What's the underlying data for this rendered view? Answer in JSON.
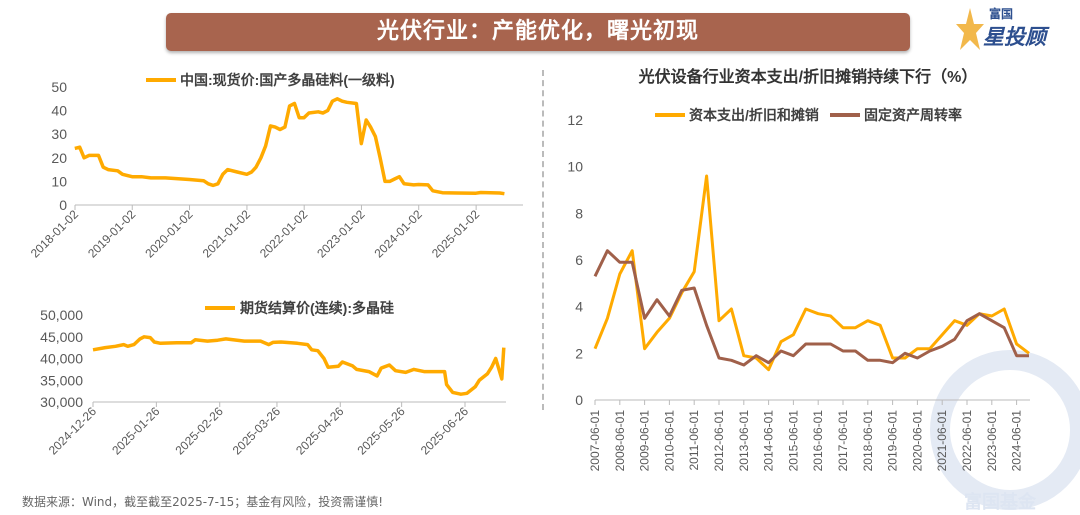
{
  "banner": {
    "title": "光伏行业：产能优化，曙光初现"
  },
  "logo": {
    "line1": "富国",
    "line2": "星投顾"
  },
  "footer": "数据来源：Wind，截至截至2025-7-15；基金有风险，投资需谨慎!",
  "watermark": "富国基金",
  "colors": {
    "orange": "#ffaa00",
    "brown": "#a0604a",
    "banner": "#a8644e"
  },
  "chart_data": [
    {
      "type": "line",
      "title": "",
      "legend": [
        "中国:现货价:国产多晶硅料(一级料)"
      ],
      "ylim": [
        0,
        50
      ],
      "yticks": [
        "0",
        "10",
        "20",
        "30",
        "40",
        "50"
      ],
      "xticks": [
        "2018-01-02",
        "2019-01-02",
        "2020-01-02",
        "2021-01-02",
        "2022-01-02",
        "2023-01-02",
        "2024-01-02",
        "2025-01-02"
      ],
      "series": [
        {
          "name": "中国:现货价:国产多晶硅料(一级料)",
          "points": [
            [
              "2018-01",
              24
            ],
            [
              "2018-02",
              24.5
            ],
            [
              "2018-03",
              20
            ],
            [
              "2018-04",
              21
            ],
            [
              "2018-06",
              21
            ],
            [
              "2018-07",
              16
            ],
            [
              "2018-08",
              15
            ],
            [
              "2018-10",
              14.5
            ],
            [
              "2018-11",
              13
            ],
            [
              "2019-01",
              12
            ],
            [
              "2019-03",
              12
            ],
            [
              "2019-05",
              11.5
            ],
            [
              "2019-08",
              11.5
            ],
            [
              "2020-01",
              10.8
            ],
            [
              "2020-04",
              10.3
            ],
            [
              "2020-05",
              9
            ],
            [
              "2020-06",
              8.3
            ],
            [
              "2020-07",
              9
            ],
            [
              "2020-08",
              13
            ],
            [
              "2020-09",
              15
            ],
            [
              "2020-11",
              14
            ],
            [
              "2021-01",
              13
            ],
            [
              "2021-02",
              14
            ],
            [
              "2021-03",
              16
            ],
            [
              "2021-04",
              20
            ],
            [
              "2021-05",
              25
            ],
            [
              "2021-06",
              33.5
            ],
            [
              "2021-07",
              33
            ],
            [
              "2021-08",
              32
            ],
            [
              "2021-09",
              33
            ],
            [
              "2021-10",
              42
            ],
            [
              "2021-11",
              43
            ],
            [
              "2021-12",
              37
            ],
            [
              "2022-01",
              37
            ],
            [
              "2022-02",
              39
            ],
            [
              "2022-04",
              39.5
            ],
            [
              "2022-05",
              39
            ],
            [
              "2022-06",
              40
            ],
            [
              "2022-07",
              44
            ],
            [
              "2022-08",
              45
            ],
            [
              "2022-09",
              44
            ],
            [
              "2022-10",
              43.5
            ],
            [
              "2022-12",
              43
            ],
            [
              "2023-01",
              26
            ],
            [
              "2023-02",
              36
            ],
            [
              "2023-03",
              33
            ],
            [
              "2023-04",
              29
            ],
            [
              "2023-05",
              20
            ],
            [
              "2023-06",
              10
            ],
            [
              "2023-07",
              10
            ],
            [
              "2023-08",
              11
            ],
            [
              "2023-09",
              12
            ],
            [
              "2023-10",
              9
            ],
            [
              "2023-12",
              8.5
            ],
            [
              "2024-01",
              8.7
            ],
            [
              "2024-03",
              8.5
            ],
            [
              "2024-04",
              6
            ],
            [
              "2024-06",
              5.2
            ],
            [
              "2024-09",
              5.1
            ],
            [
              "2025-01",
              5
            ],
            [
              "2025-02",
              5.3
            ],
            [
              "2025-06",
              5.1
            ],
            [
              "2025-07",
              4.8
            ]
          ]
        }
      ]
    },
    {
      "type": "line",
      "title": "",
      "legend": [
        "期货结算价(连续):多晶硅"
      ],
      "ylim": [
        30000,
        50000
      ],
      "yticks": [
        "30,000",
        "35,000",
        "40,000",
        "45,000",
        "50,000"
      ],
      "xticks": [
        "2024-12-26",
        "2025-01-26",
        "2025-02-26",
        "2025-03-26",
        "2025-04-26",
        "2025-05-26",
        "2025-06-26"
      ],
      "series": [
        {
          "name": "期货结算价(连续):多晶硅",
          "points": [
            [
              "2024-12-26",
              42000
            ],
            [
              "2025-01-01",
              42500
            ],
            [
              "2025-01-06",
              42800
            ],
            [
              "2025-01-10",
              43200
            ],
            [
              "2025-01-12",
              42800
            ],
            [
              "2025-01-15",
              43200
            ],
            [
              "2025-01-18",
              44500
            ],
            [
              "2025-01-20",
              45000
            ],
            [
              "2025-01-23",
              44800
            ],
            [
              "2025-01-25",
              43800
            ],
            [
              "2025-01-28",
              43500
            ],
            [
              "2025-02-05",
              43600
            ],
            [
              "2025-02-12",
              43600
            ],
            [
              "2025-02-14",
              44300
            ],
            [
              "2025-02-20",
              44000
            ],
            [
              "2025-02-25",
              44200
            ],
            [
              "2025-03-01",
              44500
            ],
            [
              "2025-03-10",
              44000
            ],
            [
              "2025-03-18",
              44000
            ],
            [
              "2025-03-22",
              43200
            ],
            [
              "2025-03-24",
              43700
            ],
            [
              "2025-03-28",
              43800
            ],
            [
              "2025-04-05",
              43500
            ],
            [
              "2025-04-10",
              43200
            ],
            [
              "2025-04-12",
              42000
            ],
            [
              "2025-04-15",
              41800
            ],
            [
              "2025-04-18",
              40000
            ],
            [
              "2025-04-20",
              38000
            ],
            [
              "2025-04-25",
              38200
            ],
            [
              "2025-04-27",
              39200
            ],
            [
              "2025-05-02",
              38300
            ],
            [
              "2025-05-04",
              37500
            ],
            [
              "2025-05-10",
              37000
            ],
            [
              "2025-05-14",
              36000
            ],
            [
              "2025-05-16",
              37800
            ],
            [
              "2025-05-20",
              38500
            ],
            [
              "2025-05-23",
              37200
            ],
            [
              "2025-05-28",
              36800
            ],
            [
              "2025-06-01",
              37500
            ],
            [
              "2025-06-06",
              37000
            ],
            [
              "2025-06-12",
              37000
            ],
            [
              "2025-06-16",
              37000
            ],
            [
              "2025-06-17",
              34000
            ],
            [
              "2025-06-20",
              32200
            ],
            [
              "2025-06-24",
              31800
            ],
            [
              "2025-06-27",
              32000
            ],
            [
              "2025-07-01",
              33500
            ],
            [
              "2025-07-03",
              35000
            ],
            [
              "2025-07-07",
              36500
            ],
            [
              "2025-07-09",
              38000
            ],
            [
              "2025-07-11",
              40000
            ],
            [
              "2025-07-14",
              35300
            ],
            [
              "2025-07-15",
              42500
            ]
          ]
        }
      ]
    },
    {
      "type": "line",
      "title": "光伏设备行业资本支出/折旧摊销持续下行（%）",
      "ylim": [
        0,
        12
      ],
      "yticks": [
        "0",
        "2",
        "4",
        "6",
        "8",
        "10",
        "12"
      ],
      "xticks": [
        "2007-06-01",
        "2008-06-01",
        "2009-06-01",
        "2010-06-01",
        "2011-06-01",
        "2012-06-01",
        "2013-06-01",
        "2014-06-01",
        "2015-06-01",
        "2016-06-01",
        "2017-06-01",
        "2018-06-01",
        "2019-06-01",
        "2020-06-01",
        "2021-06-01",
        "2022-06-01",
        "2023-06-01",
        "2024-06-01"
      ],
      "x": [
        "2007-06",
        "2007-12",
        "2008-06",
        "2008-12",
        "2009-06",
        "2009-12",
        "2010-06",
        "2010-12",
        "2011-06",
        "2011-12",
        "2012-06",
        "2012-12",
        "2013-06",
        "2013-12",
        "2014-06",
        "2014-12",
        "2015-06",
        "2015-12",
        "2016-06",
        "2016-12",
        "2017-06",
        "2017-12",
        "2018-06",
        "2018-12",
        "2019-06",
        "2019-12",
        "2020-06",
        "2020-12",
        "2021-06",
        "2021-12",
        "2022-06",
        "2022-12",
        "2023-06",
        "2023-12",
        "2024-06",
        "2024-12"
      ],
      "series": [
        {
          "name": "资本支出/折旧和摊销",
          "color": "#ffaa00",
          "values": [
            2.2,
            3.5,
            5.4,
            6.4,
            2.2,
            2.9,
            3.5,
            4.6,
            5.5,
            9.6,
            3.4,
            3.9,
            1.9,
            1.8,
            1.3,
            2.5,
            2.8,
            3.9,
            3.7,
            3.6,
            3.1,
            3.1,
            3.4,
            3.2,
            1.8,
            1.8,
            2.2,
            2.2,
            2.8,
            3.4,
            3.2,
            3.7,
            3.6,
            3.9,
            2.4,
            2.0
          ]
        },
        {
          "name": "固定资产周转率",
          "color": "#a0604a",
          "values": [
            5.3,
            6.4,
            5.9,
            5.9,
            3.5,
            4.3,
            3.6,
            4.7,
            4.8,
            3.2,
            1.8,
            1.7,
            1.5,
            1.9,
            1.6,
            2.1,
            1.9,
            2.4,
            2.4,
            2.4,
            2.1,
            2.1,
            1.7,
            1.7,
            1.6,
            2.0,
            1.8,
            2.1,
            2.3,
            2.6,
            3.4,
            3.7,
            3.4,
            3.1,
            1.9,
            1.9
          ]
        }
      ]
    }
  ]
}
